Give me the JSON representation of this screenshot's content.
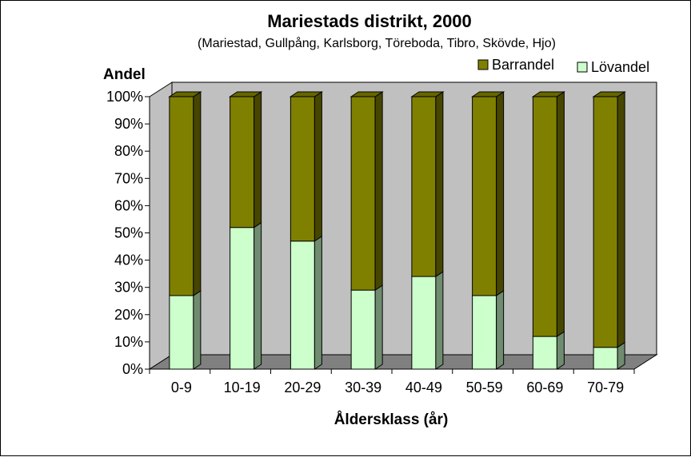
{
  "chart_data": {
    "type": "bar",
    "stacked": true,
    "three_d": true,
    "title": "Mariestads distrikt, 2000",
    "subtitle": "(Mariestad, Gullpång, Karlsborg, Töreboda, Tibro, Skövde, Hjo)",
    "xlabel": "Åldersklass (år)",
    "ylabel": "Andel",
    "ylim": [
      0,
      100
    ],
    "yticks": [
      "0%",
      "10%",
      "20%",
      "30%",
      "40%",
      "50%",
      "60%",
      "70%",
      "80%",
      "90%",
      "100%"
    ],
    "categories": [
      "0-9",
      "10-19",
      "20-29",
      "30-39",
      "40-49",
      "50-59",
      "60-69",
      "70-79"
    ],
    "series": [
      {
        "name": "Lövandel",
        "color": "#ccffcc",
        "values": [
          27,
          52,
          47,
          29,
          34,
          27,
          12,
          8
        ]
      },
      {
        "name": "Barrandel",
        "color": "#808000",
        "values": [
          73,
          48,
          53,
          71,
          66,
          73,
          88,
          92
        ]
      }
    ],
    "legend": {
      "placement": "top-right",
      "order": [
        "Barrandel",
        "Lövandel"
      ]
    },
    "wall_color": "#c0c0c0",
    "floor_color": "#808080",
    "grid": false
  }
}
